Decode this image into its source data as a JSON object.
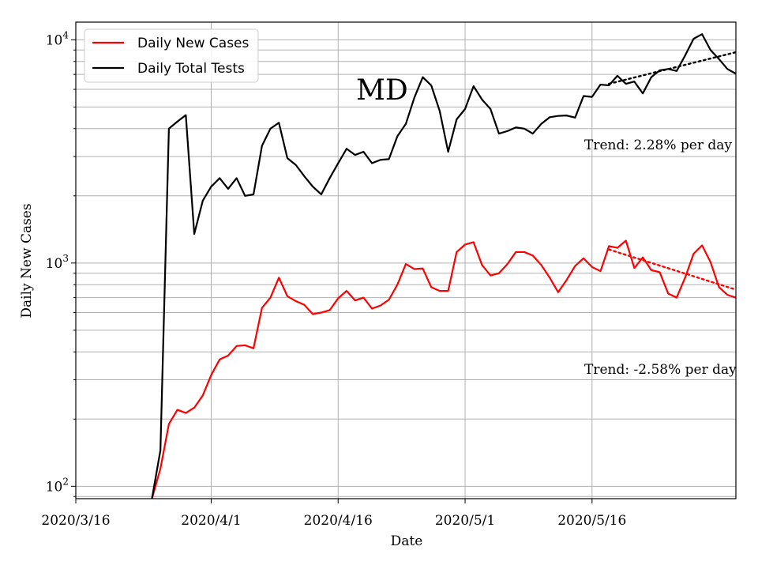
{
  "chart_data": {
    "type": "line",
    "title": "MD",
    "xlabel": "Date",
    "ylabel": "Daily New Cases",
    "yscale": "log",
    "ylim": [
      88,
      12000
    ],
    "xlim": [
      0,
      78
    ],
    "grid": true,
    "legend_position": "top-left",
    "x_origin_date": "2020/3/16",
    "x_ticks": [
      {
        "x": 0,
        "label": "2020/3/16"
      },
      {
        "x": 16,
        "label": "2020/4/1"
      },
      {
        "x": 31,
        "label": "2020/4/16"
      },
      {
        "x": 46,
        "label": "2020/5/1"
      },
      {
        "x": 61,
        "label": "2020/5/16"
      }
    ],
    "y_ticks": [
      {
        "value": 100,
        "base": "10",
        "exp": "2"
      },
      {
        "value": 1000,
        "base": "10",
        "exp": "3"
      },
      {
        "value": 10000,
        "base": "10",
        "exp": "4"
      }
    ],
    "series": [
      {
        "name": "Daily New Cases",
        "color": "#ff0000",
        "values": [
          [
            9,
            88
          ],
          [
            10,
            120
          ],
          [
            11,
            190
          ],
          [
            12,
            220
          ],
          [
            13,
            213
          ],
          [
            14,
            225
          ],
          [
            15,
            255
          ],
          [
            16,
            315
          ],
          [
            17,
            370
          ],
          [
            18,
            385
          ],
          [
            19,
            425
          ],
          [
            20,
            428
          ],
          [
            21,
            415
          ],
          [
            22,
            630
          ],
          [
            23,
            700
          ],
          [
            24,
            860
          ],
          [
            25,
            710
          ],
          [
            26,
            675
          ],
          [
            27,
            650
          ],
          [
            28,
            590
          ],
          [
            29,
            600
          ],
          [
            30,
            615
          ],
          [
            31,
            695
          ],
          [
            32,
            750
          ],
          [
            33,
            680
          ],
          [
            34,
            700
          ],
          [
            35,
            625
          ],
          [
            36,
            645
          ],
          [
            37,
            685
          ],
          [
            38,
            800
          ],
          [
            39,
            990
          ],
          [
            40,
            940
          ],
          [
            41,
            945
          ],
          [
            42,
            780
          ],
          [
            43,
            750
          ],
          [
            44,
            750
          ],
          [
            45,
            1120
          ],
          [
            46,
            1210
          ],
          [
            47,
            1240
          ],
          [
            48,
            980
          ],
          [
            49,
            880
          ],
          [
            50,
            900
          ],
          [
            51,
            990
          ],
          [
            52,
            1120
          ],
          [
            53,
            1120
          ],
          [
            54,
            1080
          ],
          [
            55,
            980
          ],
          [
            56,
            860
          ],
          [
            57,
            740
          ],
          [
            58,
            840
          ],
          [
            59,
            970
          ],
          [
            60,
            1050
          ],
          [
            61,
            960
          ],
          [
            62,
            920
          ],
          [
            63,
            1190
          ],
          [
            64,
            1170
          ],
          [
            65,
            1260
          ],
          [
            66,
            950
          ],
          [
            67,
            1060
          ],
          [
            68,
            930
          ],
          [
            69,
            910
          ],
          [
            70,
            730
          ],
          [
            71,
            700
          ],
          [
            72,
            860
          ],
          [
            73,
            1100
          ],
          [
            74,
            1200
          ],
          [
            75,
            1010
          ],
          [
            76,
            780
          ],
          [
            77,
            720
          ],
          [
            78,
            700
          ]
        ]
      },
      {
        "name": "Daily Total Tests",
        "color": "#000000",
        "values": [
          [
            9,
            88
          ],
          [
            10,
            145
          ],
          [
            11,
            4000
          ],
          [
            12,
            4300
          ],
          [
            13,
            4600
          ],
          [
            14,
            1350
          ],
          [
            15,
            1900
          ],
          [
            16,
            2200
          ],
          [
            17,
            2400
          ],
          [
            18,
            2150
          ],
          [
            19,
            2400
          ],
          [
            20,
            2000
          ],
          [
            21,
            2030
          ],
          [
            22,
            3350
          ],
          [
            23,
            4000
          ],
          [
            24,
            4250
          ],
          [
            25,
            2950
          ],
          [
            26,
            2750
          ],
          [
            27,
            2450
          ],
          [
            28,
            2200
          ],
          [
            29,
            2030
          ],
          [
            30,
            2400
          ],
          [
            31,
            2800
          ],
          [
            32,
            3250
          ],
          [
            33,
            3050
          ],
          [
            34,
            3150
          ],
          [
            35,
            2800
          ],
          [
            36,
            2900
          ],
          [
            37,
            2920
          ],
          [
            38,
            3700
          ],
          [
            39,
            4200
          ],
          [
            40,
            5500
          ],
          [
            41,
            6800
          ],
          [
            42,
            6250
          ],
          [
            43,
            4800
          ],
          [
            44,
            3150
          ],
          [
            45,
            4400
          ],
          [
            46,
            4900
          ],
          [
            47,
            6200
          ],
          [
            48,
            5400
          ],
          [
            49,
            4900
          ],
          [
            50,
            3800
          ],
          [
            51,
            3900
          ],
          [
            52,
            4050
          ],
          [
            53,
            4000
          ],
          [
            54,
            3800
          ],
          [
            55,
            4200
          ],
          [
            56,
            4500
          ],
          [
            57,
            4560
          ],
          [
            58,
            4580
          ],
          [
            59,
            4480
          ],
          [
            60,
            5600
          ],
          [
            61,
            5550
          ],
          [
            62,
            6300
          ],
          [
            63,
            6250
          ],
          [
            64,
            6900
          ],
          [
            65,
            6350
          ],
          [
            66,
            6500
          ],
          [
            67,
            5750
          ],
          [
            68,
            6800
          ],
          [
            69,
            7300
          ],
          [
            70,
            7400
          ],
          [
            71,
            7250
          ],
          [
            72,
            8500
          ],
          [
            73,
            10100
          ],
          [
            74,
            10600
          ],
          [
            75,
            9000
          ],
          [
            76,
            8200
          ],
          [
            77,
            7400
          ],
          [
            78,
            7050
          ]
        ]
      }
    ],
    "trends": [
      {
        "name": "cases-trend",
        "color": "#ff0000",
        "start": [
          63,
          1150
        ],
        "end": [
          78,
          760
        ]
      },
      {
        "name": "tests-trend",
        "color": "#000000",
        "start": [
          63,
          6350
        ],
        "end": [
          78,
          8800
        ]
      }
    ],
    "annotations": [
      {
        "id": "title",
        "text": "MD"
      },
      {
        "id": "tests_trend",
        "text": "Trend: 2.28% per day"
      },
      {
        "id": "cases_trend",
        "text": "Trend: -2.58% per day"
      }
    ]
  }
}
